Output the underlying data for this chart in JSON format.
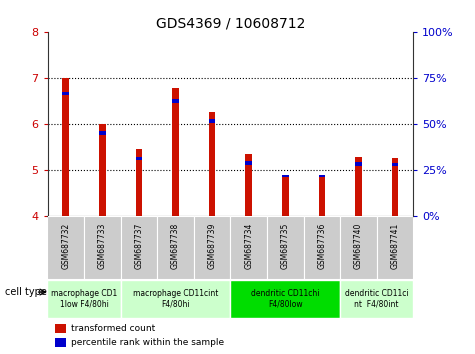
{
  "title": "GDS4369 / 10608712",
  "samples": [
    "GSM687732",
    "GSM687733",
    "GSM687737",
    "GSM687738",
    "GSM687739",
    "GSM687734",
    "GSM687735",
    "GSM687736",
    "GSM687740",
    "GSM687741"
  ],
  "red_tops": [
    7.0,
    6.0,
    5.45,
    6.78,
    6.25,
    5.33,
    4.85,
    4.85,
    5.28,
    5.25
  ],
  "blue_bottoms": [
    6.62,
    5.76,
    5.2,
    6.45,
    6.02,
    5.1,
    4.84,
    4.84,
    5.08,
    5.07
  ],
  "blue_tops": [
    6.7,
    5.84,
    5.28,
    6.53,
    6.1,
    5.18,
    4.88,
    4.88,
    5.16,
    5.15
  ],
  "ymin": 4.0,
  "ymax": 8.0,
  "yticks_left": [
    4,
    5,
    6,
    7,
    8
  ],
  "yticks_right": [
    0,
    25,
    50,
    75,
    100
  ],
  "ytick_labels_right": [
    "0%",
    "25%",
    "50%",
    "75%",
    "100%"
  ],
  "left_color": "#cc0000",
  "right_color": "#0000cc",
  "bar_color_red": "#cc1100",
  "bar_color_blue": "#0000cc",
  "cell_type_groups": [
    {
      "label": "macrophage CD1\n1low F4/80hi",
      "start": 0,
      "end": 1,
      "color": "#ccffcc"
    },
    {
      "label": "macrophage CD11cint\nF4/80hi",
      "start": 2,
      "end": 4,
      "color": "#ccffcc"
    },
    {
      "label": "dendritic CD11chi\nF4/80low",
      "start": 5,
      "end": 7,
      "color": "#00cc00"
    },
    {
      "label": "dendritic CD11ci\nnt  F4/80int",
      "start": 8,
      "end": 9,
      "color": "#ccffcc"
    }
  ],
  "legend_red": "transformed count",
  "legend_blue": "percentile rank within the sample",
  "cell_type_label": "cell type",
  "bar_width": 0.18,
  "tick_bg": "#cccccc",
  "tick_bg2": "#dddddd"
}
